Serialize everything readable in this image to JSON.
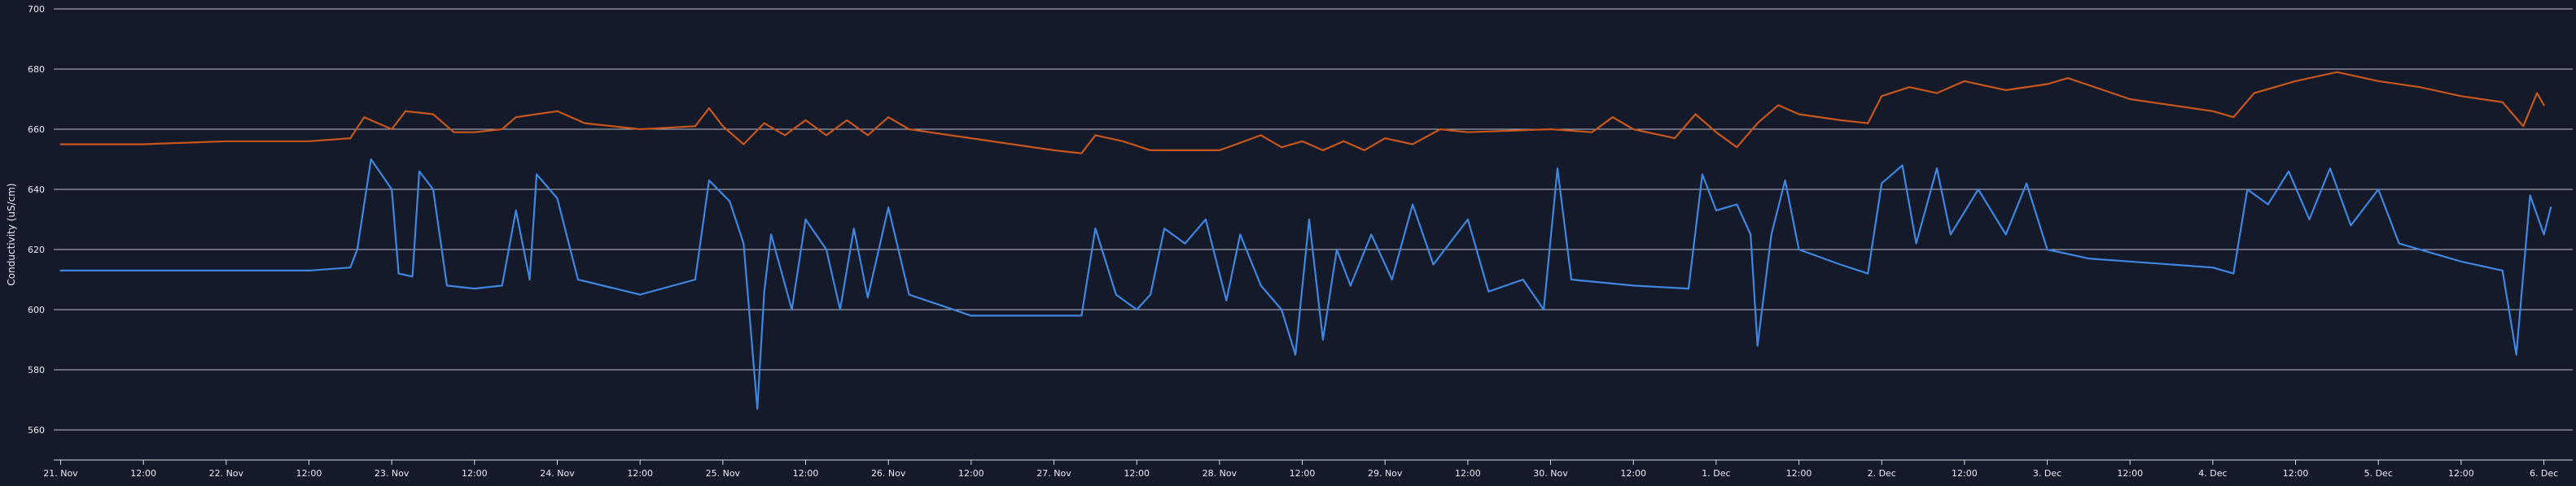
{
  "chart_data": {
    "type": "line",
    "title": "",
    "ylabel": "Conductivity (uS/cm)",
    "xlabel": "",
    "ylim": [
      550,
      700
    ],
    "xlim": [
      "2020-11-20T23:00",
      "2020-12-06T03:00"
    ],
    "y_ticks": [
      560,
      580,
      600,
      620,
      640,
      660,
      680,
      700
    ],
    "grid": true,
    "legend": "none",
    "x_ticks": [
      {
        "t": "2020-11-21T00:00",
        "label": "21. Nov"
      },
      {
        "t": "2020-11-21T12:00",
        "label": "12:00"
      },
      {
        "t": "2020-11-22T00:00",
        "label": "22. Nov"
      },
      {
        "t": "2020-11-22T12:00",
        "label": "12:00"
      },
      {
        "t": "2020-11-23T00:00",
        "label": "23. Nov"
      },
      {
        "t": "2020-11-23T12:00",
        "label": "12:00"
      },
      {
        "t": "2020-11-24T00:00",
        "label": "24. Nov"
      },
      {
        "t": "2020-11-24T12:00",
        "label": "12:00"
      },
      {
        "t": "2020-11-25T00:00",
        "label": "25. Nov"
      },
      {
        "t": "2020-11-25T12:00",
        "label": "12:00"
      },
      {
        "t": "2020-11-26T00:00",
        "label": "26. Nov"
      },
      {
        "t": "2020-11-26T12:00",
        "label": "12:00"
      },
      {
        "t": "2020-11-27T00:00",
        "label": "27. Nov"
      },
      {
        "t": "2020-11-27T12:00",
        "label": "12:00"
      },
      {
        "t": "2020-11-28T00:00",
        "label": "28. Nov"
      },
      {
        "t": "2020-11-28T12:00",
        "label": "12:00"
      },
      {
        "t": "2020-11-29T00:00",
        "label": "29. Nov"
      },
      {
        "t": "2020-11-29T12:00",
        "label": "12:00"
      },
      {
        "t": "2020-11-30T00:00",
        "label": "30. Nov"
      },
      {
        "t": "2020-11-30T12:00",
        "label": "12:00"
      },
      {
        "t": "2020-12-01T00:00",
        "label": "1. Dec"
      },
      {
        "t": "2020-12-01T12:00",
        "label": "12:00"
      },
      {
        "t": "2020-12-02T00:00",
        "label": "2. Dec"
      },
      {
        "t": "2020-12-02T12:00",
        "label": "12:00"
      },
      {
        "t": "2020-12-03T00:00",
        "label": "3. Dec"
      },
      {
        "t": "2020-12-03T12:00",
        "label": "12:00"
      },
      {
        "t": "2020-12-04T00:00",
        "label": "4. Dec"
      },
      {
        "t": "2020-12-04T12:00",
        "label": "12:00"
      },
      {
        "t": "2020-12-05T00:00",
        "label": "5. Dec"
      },
      {
        "t": "2020-12-05T12:00",
        "label": "12:00"
      },
      {
        "t": "2020-12-06T00:00",
        "label": "6. Dec"
      }
    ],
    "series": [
      {
        "color": "#c8561c",
        "points": [
          [
            "2020-11-21T00:00",
            655
          ],
          [
            "2020-11-21T12:00",
            655
          ],
          [
            "2020-11-22T00:00",
            656
          ],
          [
            "2020-11-22T12:00",
            656
          ],
          [
            "2020-11-22T18:00",
            657
          ],
          [
            "2020-11-22T20:00",
            664
          ],
          [
            "2020-11-23T00:00",
            660
          ],
          [
            "2020-11-23T02:00",
            666
          ],
          [
            "2020-11-23T06:00",
            665
          ],
          [
            "2020-11-23T09:00",
            659
          ],
          [
            "2020-11-23T12:00",
            659
          ],
          [
            "2020-11-23T16:00",
            660
          ],
          [
            "2020-11-23T18:00",
            664
          ],
          [
            "2020-11-24T00:00",
            666
          ],
          [
            "2020-11-24T04:00",
            662
          ],
          [
            "2020-11-24T12:00",
            660
          ],
          [
            "2020-11-24T20:00",
            661
          ],
          [
            "2020-11-24T22:00",
            667
          ],
          [
            "2020-11-25T00:00",
            661
          ],
          [
            "2020-11-25T03:00",
            655
          ],
          [
            "2020-11-25T06:00",
            662
          ],
          [
            "2020-11-25T09:00",
            658
          ],
          [
            "2020-11-25T12:00",
            663
          ],
          [
            "2020-11-25T15:00",
            658
          ],
          [
            "2020-11-25T18:00",
            663
          ],
          [
            "2020-11-25T21:00",
            658
          ],
          [
            "2020-11-26T00:00",
            664
          ],
          [
            "2020-11-26T03:00",
            660
          ],
          [
            "2020-11-26T06:00",
            659
          ],
          [
            "2020-11-26T12:00",
            657
          ],
          [
            "2020-11-27T00:00",
            653
          ],
          [
            "2020-11-27T04:00",
            652
          ],
          [
            "2020-11-27T06:00",
            658
          ],
          [
            "2020-11-27T10:00",
            656
          ],
          [
            "2020-11-27T14:00",
            653
          ],
          [
            "2020-11-28T00:00",
            653
          ],
          [
            "2020-11-28T06:00",
            658
          ],
          [
            "2020-11-28T09:00",
            654
          ],
          [
            "2020-11-28T12:00",
            656
          ],
          [
            "2020-11-28T15:00",
            653
          ],
          [
            "2020-11-28T18:00",
            656
          ],
          [
            "2020-11-28T21:00",
            653
          ],
          [
            "2020-11-29T00:00",
            657
          ],
          [
            "2020-11-29T04:00",
            655
          ],
          [
            "2020-11-29T08:00",
            660
          ],
          [
            "2020-11-29T12:00",
            659
          ],
          [
            "2020-11-30T00:00",
            660
          ],
          [
            "2020-11-30T06:00",
            659
          ],
          [
            "2020-11-30T09:00",
            664
          ],
          [
            "2020-11-30T12:00",
            660
          ],
          [
            "2020-11-30T18:00",
            657
          ],
          [
            "2020-11-30T21:00",
            665
          ],
          [
            "2020-12-01T00:00",
            659
          ],
          [
            "2020-12-01T03:00",
            654
          ],
          [
            "2020-12-01T06:00",
            662
          ],
          [
            "2020-12-01T09:00",
            668
          ],
          [
            "2020-12-01T12:00",
            665
          ],
          [
            "2020-12-01T18:00",
            663
          ],
          [
            "2020-12-01T22:00",
            662
          ],
          [
            "2020-12-02T00:00",
            671
          ],
          [
            "2020-12-02T04:00",
            674
          ],
          [
            "2020-12-02T08:00",
            672
          ],
          [
            "2020-12-02T12:00",
            676
          ],
          [
            "2020-12-02T18:00",
            673
          ],
          [
            "2020-12-03T00:00",
            675
          ],
          [
            "2020-12-03T03:00",
            677
          ],
          [
            "2020-12-03T12:00",
            670
          ],
          [
            "2020-12-04T00:00",
            666
          ],
          [
            "2020-12-04T03:00",
            664
          ],
          [
            "2020-12-04T06:00",
            672
          ],
          [
            "2020-12-04T12:00",
            676
          ],
          [
            "2020-12-04T18:00",
            679
          ],
          [
            "2020-12-05T00:00",
            676
          ],
          [
            "2020-12-05T06:00",
            674
          ],
          [
            "2020-12-05T12:00",
            671
          ],
          [
            "2020-12-05T18:00",
            669
          ],
          [
            "2020-12-05T21:00",
            661
          ],
          [
            "2020-12-05T23:00",
            672
          ],
          [
            "2020-12-06T00:00",
            668
          ]
        ]
      },
      {
        "color": "#3f86e0",
        "points": [
          [
            "2020-11-21T00:00",
            613
          ],
          [
            "2020-11-21T12:00",
            613
          ],
          [
            "2020-11-22T00:00",
            613
          ],
          [
            "2020-11-22T12:00",
            613
          ],
          [
            "2020-11-22T18:00",
            614
          ],
          [
            "2020-11-22T19:00",
            620
          ],
          [
            "2020-11-22T21:00",
            650
          ],
          [
            "2020-11-23T00:00",
            640
          ],
          [
            "2020-11-23T01:00",
            612
          ],
          [
            "2020-11-23T03:00",
            611
          ],
          [
            "2020-11-23T04:00",
            646
          ],
          [
            "2020-11-23T06:00",
            640
          ],
          [
            "2020-11-23T08:00",
            608
          ],
          [
            "2020-11-23T12:00",
            607
          ],
          [
            "2020-11-23T16:00",
            608
          ],
          [
            "2020-11-23T18:00",
            633
          ],
          [
            "2020-11-23T20:00",
            610
          ],
          [
            "2020-11-23T21:00",
            645
          ],
          [
            "2020-11-24T00:00",
            637
          ],
          [
            "2020-11-24T03:00",
            610
          ],
          [
            "2020-11-24T12:00",
            605
          ],
          [
            "2020-11-24T20:00",
            610
          ],
          [
            "2020-11-24T22:00",
            643
          ],
          [
            "2020-11-25T01:00",
            636
          ],
          [
            "2020-11-25T03:00",
            622
          ],
          [
            "2020-11-25T05:00",
            567
          ],
          [
            "2020-11-25T06:00",
            606
          ],
          [
            "2020-11-25T07:00",
            625
          ],
          [
            "2020-11-25T10:00",
            600
          ],
          [
            "2020-11-25T12:00",
            630
          ],
          [
            "2020-11-25T15:00",
            620
          ],
          [
            "2020-11-25T17:00",
            600
          ],
          [
            "2020-11-25T19:00",
            627
          ],
          [
            "2020-11-25T21:00",
            604
          ],
          [
            "2020-11-26T00:00",
            634
          ],
          [
            "2020-11-26T03:00",
            605
          ],
          [
            "2020-11-26T12:00",
            598
          ],
          [
            "2020-11-27T00:00",
            598
          ],
          [
            "2020-11-27T04:00",
            598
          ],
          [
            "2020-11-27T06:00",
            627
          ],
          [
            "2020-11-27T09:00",
            605
          ],
          [
            "2020-11-27T12:00",
            600
          ],
          [
            "2020-11-27T14:00",
            605
          ],
          [
            "2020-11-27T16:00",
            627
          ],
          [
            "2020-11-27T19:00",
            622
          ],
          [
            "2020-11-27T22:00",
            630
          ],
          [
            "2020-11-28T01:00",
            603
          ],
          [
            "2020-11-28T03:00",
            625
          ],
          [
            "2020-11-28T06:00",
            608
          ],
          [
            "2020-11-28T09:00",
            600
          ],
          [
            "2020-11-28T11:00",
            585
          ],
          [
            "2020-11-28T13:00",
            630
          ],
          [
            "2020-11-28T15:00",
            590
          ],
          [
            "2020-11-28T17:00",
            620
          ],
          [
            "2020-11-28T19:00",
            608
          ],
          [
            "2020-11-28T22:00",
            625
          ],
          [
            "2020-11-29T01:00",
            610
          ],
          [
            "2020-11-29T04:00",
            635
          ],
          [
            "2020-11-29T07:00",
            615
          ],
          [
            "2020-11-29T12:00",
            630
          ],
          [
            "2020-11-29T15:00",
            606
          ],
          [
            "2020-11-29T20:00",
            610
          ],
          [
            "2020-11-29T23:00",
            600
          ],
          [
            "2020-11-30T01:00",
            647
          ],
          [
            "2020-11-30T03:00",
            610
          ],
          [
            "2020-11-30T12:00",
            608
          ],
          [
            "2020-11-30T20:00",
            607
          ],
          [
            "2020-11-30T22:00",
            645
          ],
          [
            "2020-12-01T00:00",
            633
          ],
          [
            "2020-12-01T03:00",
            635
          ],
          [
            "2020-12-01T05:00",
            625
          ],
          [
            "2020-12-01T06:00",
            588
          ],
          [
            "2020-12-01T08:00",
            625
          ],
          [
            "2020-12-01T10:00",
            643
          ],
          [
            "2020-12-01T12:00",
            620
          ],
          [
            "2020-12-01T18:00",
            615
          ],
          [
            "2020-12-01T22:00",
            612
          ],
          [
            "2020-12-02T00:00",
            642
          ],
          [
            "2020-12-02T03:00",
            648
          ],
          [
            "2020-12-02T05:00",
            622
          ],
          [
            "2020-12-02T08:00",
            647
          ],
          [
            "2020-12-02T10:00",
            625
          ],
          [
            "2020-12-02T14:00",
            640
          ],
          [
            "2020-12-02T18:00",
            625
          ],
          [
            "2020-12-02T21:00",
            642
          ],
          [
            "2020-12-03T00:00",
            620
          ],
          [
            "2020-12-03T06:00",
            617
          ],
          [
            "2020-12-03T12:00",
            616
          ],
          [
            "2020-12-04T00:00",
            614
          ],
          [
            "2020-12-04T03:00",
            612
          ],
          [
            "2020-12-04T05:00",
            640
          ],
          [
            "2020-12-04T08:00",
            635
          ],
          [
            "2020-12-04T11:00",
            646
          ],
          [
            "2020-12-04T14:00",
            630
          ],
          [
            "2020-12-04T17:00",
            647
          ],
          [
            "2020-12-04T20:00",
            628
          ],
          [
            "2020-12-05T00:00",
            640
          ],
          [
            "2020-12-05T03:00",
            622
          ],
          [
            "2020-12-05T12:00",
            616
          ],
          [
            "2020-12-05T18:00",
            613
          ],
          [
            "2020-12-05T20:00",
            585
          ],
          [
            "2020-12-05T22:00",
            638
          ],
          [
            "2020-12-06T00:00",
            625
          ],
          [
            "2020-12-06T01:00",
            634
          ]
        ]
      }
    ]
  }
}
